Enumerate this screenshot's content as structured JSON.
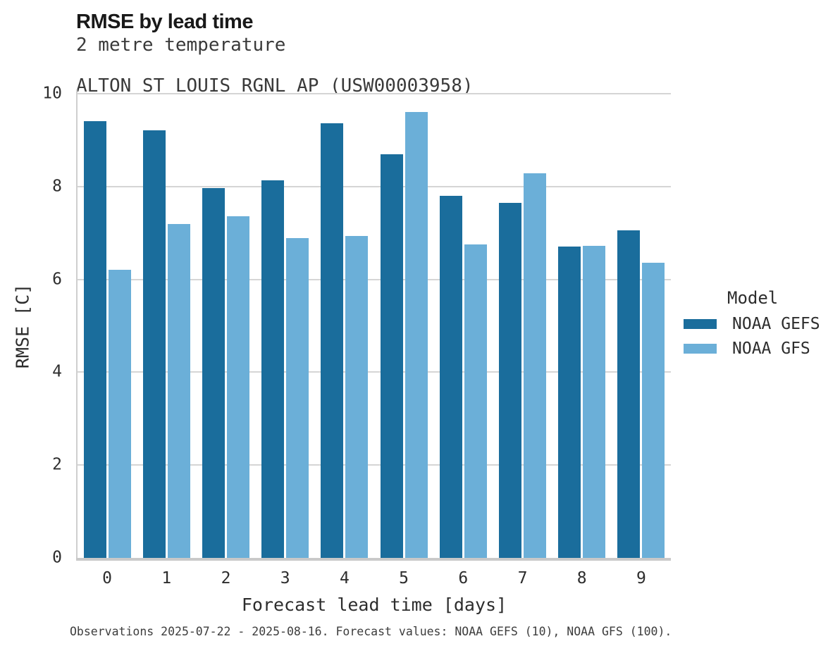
{
  "header": {
    "title": "RMSE by lead time",
    "subtitle_line1": "2 metre temperature",
    "subtitle_line2": "ALTON ST LOUIS RGNL AP (USW00003958)"
  },
  "chart_data": {
    "type": "bar",
    "title": "RMSE by lead time",
    "subtitle": [
      "2 metre temperature",
      "ALTON ST LOUIS RGNL AP (USW00003958)"
    ],
    "categories": [
      "0",
      "1",
      "2",
      "3",
      "4",
      "5",
      "6",
      "7",
      "8",
      "9"
    ],
    "series": [
      {
        "name": "NOAA GEFS",
        "color": "#1a6d9c",
        "values": [
          9.41,
          9.21,
          7.97,
          8.14,
          9.36,
          8.7,
          7.8,
          7.65,
          6.7,
          7.06
        ]
      },
      {
        "name": "NOAA GFS",
        "color": "#6bafd8",
        "values": [
          6.21,
          7.2,
          7.36,
          6.89,
          6.94,
          9.6,
          6.75,
          8.29,
          6.72,
          6.36
        ]
      }
    ],
    "xlabel": "Forecast lead time [days]",
    "ylabel": "RMSE [C]",
    "ylim": [
      0,
      10
    ],
    "yticks": [
      0,
      2,
      4,
      6,
      8,
      10
    ],
    "grid": true,
    "legend_title": "Model",
    "legend_position": "right of plot, vertically centered",
    "colors": {
      "gridline": "#d5d5d5",
      "spine": "#cfcfcf",
      "baseline": "#c9c9c9"
    }
  },
  "caption": "Observations 2025-07-22 - 2025-08-16. Forecast values: NOAA GEFS (10), NOAA GFS (100)."
}
